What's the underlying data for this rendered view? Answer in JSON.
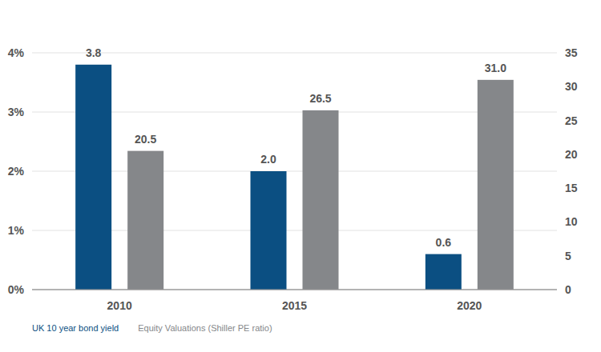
{
  "chart_data": {
    "type": "bar",
    "categories": [
      "2010",
      "2015",
      "2020"
    ],
    "series": [
      {
        "name": "UK 10 year bond yield",
        "color": "#0b4f82",
        "values": [
          3.8,
          2.0,
          0.6
        ],
        "value_labels": [
          "3.8",
          "2.0",
          "0.6"
        ]
      },
      {
        "name": "Equity Valuations (Shiller PE ratio)",
        "color": "#85878a",
        "values": [
          20.5,
          26.5,
          31.0
        ],
        "value_labels": [
          "20.5",
          "26.5",
          "31.0"
        ],
        "axis": "y2"
      }
    ],
    "ylim": [
      0,
      4
    ],
    "yticks": [
      {
        "value": 0,
        "label": "0%"
      },
      {
        "value": 1,
        "label": "1%"
      },
      {
        "value": 2,
        "label": "2%"
      },
      {
        "value": 3,
        "label": "3%"
      },
      {
        "value": 4,
        "label": "4%"
      }
    ],
    "y2lim": [
      0,
      35
    ],
    "y2ticks": [
      0,
      5,
      10,
      15,
      20,
      25,
      30,
      35
    ],
    "grid": true,
    "legend": "bottom-left",
    "data_labels": true
  }
}
